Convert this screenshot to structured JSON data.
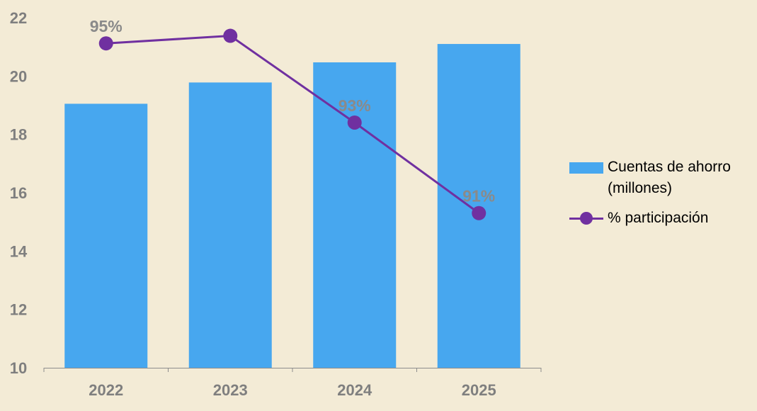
{
  "chart_data": {
    "type": "bar",
    "categories": [
      "2022",
      "2023",
      "2024",
      "2025"
    ],
    "series": [
      {
        "name": "Cuentas de ahorro (millones)",
        "type": "bar",
        "axis": "left",
        "values": [
          19.05,
          19.78,
          20.47,
          21.1
        ],
        "color": "#47a7ef"
      },
      {
        "name": "% participación",
        "type": "line",
        "axis": "secondary-hidden",
        "values": [
          95.1,
          95.3,
          93.0,
          90.6
        ],
        "data_labels": [
          "95%",
          "",
          "93%",
          "91%"
        ],
        "color": "#7030a0"
      }
    ],
    "ylim": [
      10,
      22
    ],
    "yticks": [
      "10",
      "12",
      "14",
      "16",
      "18",
      "20",
      "22"
    ],
    "legend": "right",
    "grid": false,
    "title": "",
    "xlabel": "",
    "ylabel": ""
  },
  "colors": {
    "background": "#f3ebd6",
    "bar": "#47a7ef",
    "line": "#7030a0",
    "axis_text": "#7f7f7f",
    "data_label": "#8a8a8a"
  }
}
